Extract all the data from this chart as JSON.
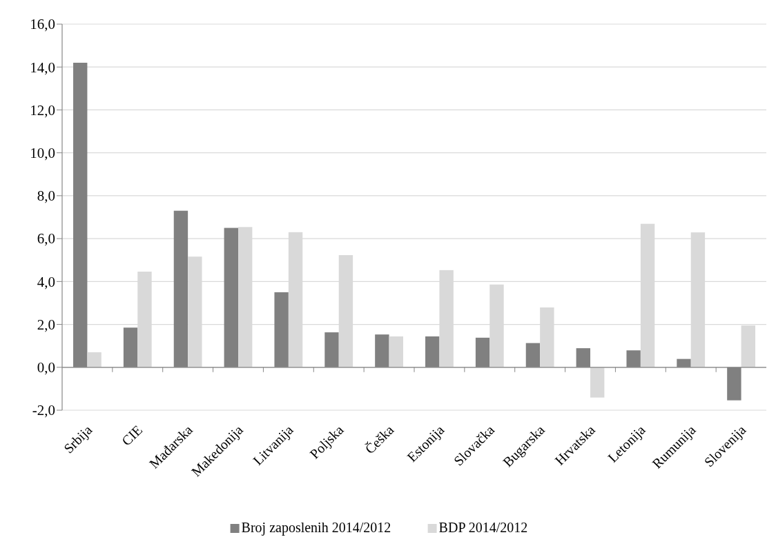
{
  "chart_data": {
    "type": "bar",
    "categories": [
      "Srbija",
      "CIE",
      "Mađarska",
      "Makedonija",
      "Litvanija",
      "Poljska",
      "Češka",
      "Estonija",
      "Slovačka",
      "Bugarska",
      "Hrvatska",
      "Letonija",
      "Rumunija",
      "Slovenija"
    ],
    "series": [
      {
        "name": "Broj zaposlenih 2014/2012",
        "color": "#808080",
        "values": [
          14.2,
          1.85,
          7.3,
          6.5,
          3.5,
          1.63,
          1.53,
          1.44,
          1.38,
          1.13,
          0.89,
          0.79,
          0.39,
          -1.54
        ]
      },
      {
        "name": "BDP 2014/2012",
        "color": "#d9d9d9",
        "values": [
          0.7,
          4.46,
          5.16,
          6.54,
          6.3,
          5.23,
          1.44,
          4.53,
          3.86,
          2.79,
          -1.41,
          6.69,
          6.29,
          1.95
        ]
      }
    ],
    "ylim": [
      -2,
      16
    ],
    "yticks": [
      {
        "value": -2,
        "label": "-2,0"
      },
      {
        "value": 0,
        "label": "0,0"
      },
      {
        "value": 2,
        "label": "2,0"
      },
      {
        "value": 4,
        "label": "4,0"
      },
      {
        "value": 6,
        "label": "6,0"
      },
      {
        "value": 8,
        "label": "8,0"
      },
      {
        "value": 10,
        "label": "10,0"
      },
      {
        "value": 12,
        "label": "12,0"
      },
      {
        "value": 14,
        "label": "14,0"
      },
      {
        "value": 16,
        "label": "16,0"
      }
    ],
    "grid": "y",
    "legend": "bottom"
  }
}
